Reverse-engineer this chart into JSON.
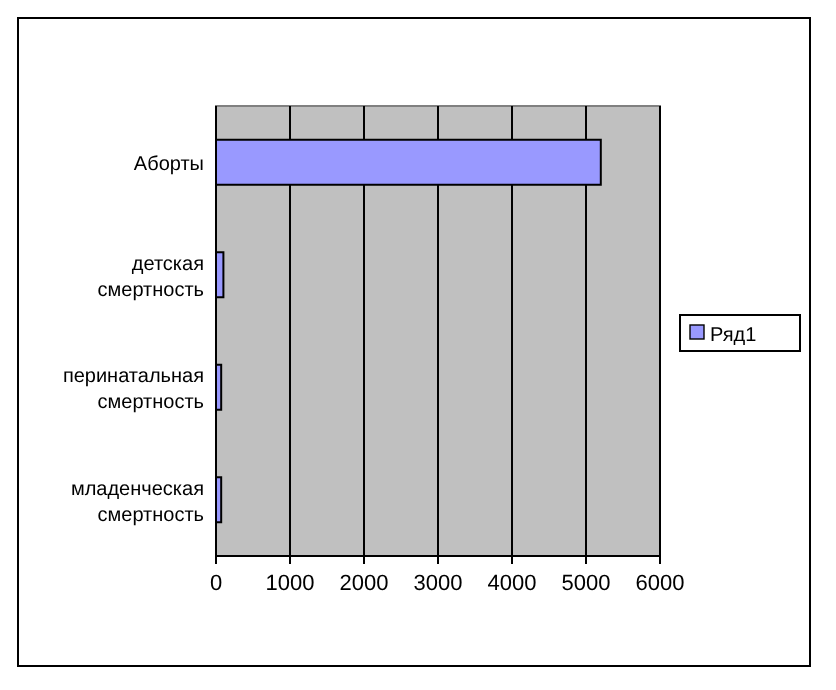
{
  "chart_data": {
    "type": "bar",
    "orientation": "horizontal",
    "categories": [
      "Аборты",
      "детская смертность",
      "перинатальная смертность",
      "младенческая смертность"
    ],
    "series": [
      {
        "name": "Ряд1",
        "color": "#9999ff",
        "values": [
          5200,
          100,
          70,
          70
        ]
      }
    ],
    "xlim": [
      0,
      6000
    ],
    "xticks": [
      0,
      1000,
      2000,
      3000,
      4000,
      5000,
      6000
    ],
    "grid": "x",
    "legend": "right"
  }
}
